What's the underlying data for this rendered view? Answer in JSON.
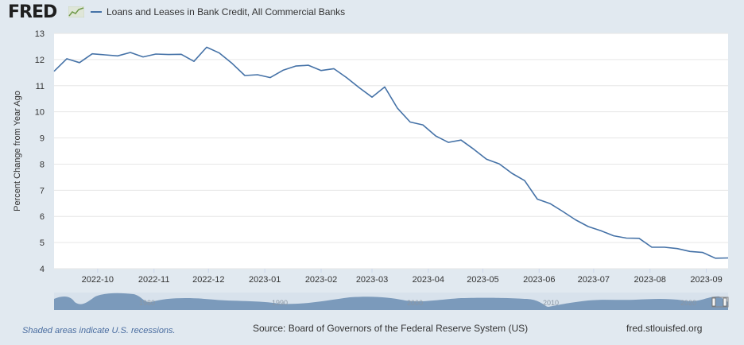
{
  "brand": {
    "logo_text": "FRED"
  },
  "legend": {
    "label": "Loans and Leases in Bank Credit, All Commercial Banks",
    "color": "#4572a7"
  },
  "footer": {
    "note": "Shaded areas indicate U.S. recessions.",
    "source": "Source: Board of Governors of the Federal Reserve System (US)",
    "site": "fred.stlouisfed.org"
  },
  "navigator": {
    "labels": [
      "1980",
      "1990",
      "2000",
      "2010",
      "2020"
    ]
  },
  "chart_data": {
    "type": "line",
    "title": "",
    "xlabel": "",
    "ylabel": "Percent Change from Year Ago",
    "ylim": [
      4,
      13
    ],
    "yticks": [
      4,
      5,
      6,
      7,
      8,
      9,
      10,
      11,
      12,
      13
    ],
    "xlim": [
      "2022-09-07",
      "2023-09-13"
    ],
    "xticks": [
      "2022-10",
      "2022-11",
      "2022-12",
      "2023-01",
      "2023-02",
      "2023-03",
      "2023-04",
      "2023-05",
      "2023-06",
      "2023-07",
      "2023-08",
      "2023-09"
    ],
    "grid": true,
    "legend_position": "top-left",
    "series": [
      {
        "name": "Loans and Leases in Bank Credit, All Commercial Banks",
        "color": "#4572a7",
        "x": [
          "2022-09-07",
          "2022-09-14",
          "2022-09-21",
          "2022-09-28",
          "2022-10-05",
          "2022-10-12",
          "2022-10-19",
          "2022-10-26",
          "2022-11-02",
          "2022-11-09",
          "2022-11-16",
          "2022-11-23",
          "2022-11-30",
          "2022-12-07",
          "2022-12-14",
          "2022-12-21",
          "2022-12-28",
          "2023-01-04",
          "2023-01-11",
          "2023-01-18",
          "2023-01-25",
          "2023-02-01",
          "2023-02-08",
          "2023-02-15",
          "2023-02-22",
          "2023-03-01",
          "2023-03-08",
          "2023-03-15",
          "2023-03-22",
          "2023-03-29",
          "2023-04-05",
          "2023-04-12",
          "2023-04-19",
          "2023-04-26",
          "2023-05-03",
          "2023-05-10",
          "2023-05-17",
          "2023-05-24",
          "2023-05-31",
          "2023-06-07",
          "2023-06-14",
          "2023-06-21",
          "2023-06-28",
          "2023-07-05",
          "2023-07-12",
          "2023-07-19",
          "2023-07-26",
          "2023-08-02",
          "2023-08-09",
          "2023-08-16",
          "2023-08-23",
          "2023-08-30",
          "2023-09-06",
          "2023-09-13"
        ],
        "values": [
          11.55,
          12.03,
          11.88,
          12.22,
          12.18,
          12.14,
          12.27,
          12.1,
          12.21,
          12.19,
          12.2,
          11.93,
          12.47,
          12.25,
          11.85,
          11.39,
          11.42,
          11.31,
          11.59,
          11.75,
          11.78,
          11.58,
          11.65,
          11.31,
          10.92,
          10.56,
          10.95,
          10.14,
          9.61,
          9.5,
          9.08,
          8.83,
          8.92,
          8.57,
          8.19,
          8.01,
          7.65,
          7.37,
          6.66,
          6.49,
          6.19,
          5.87,
          5.61,
          5.45,
          5.26,
          5.17,
          5.16,
          4.82,
          4.82,
          4.77,
          4.66,
          4.62,
          4.4,
          4.41
        ]
      }
    ]
  }
}
